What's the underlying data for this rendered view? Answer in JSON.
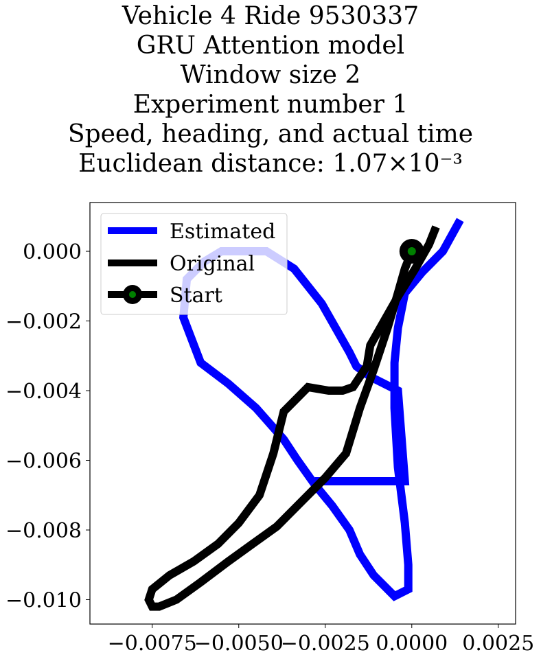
{
  "chart_data": {
    "type": "line",
    "title_lines": [
      "Vehicle 4 Ride 9530337",
      "GRU Attention model",
      "Window size 2",
      "Experiment number 1",
      "Speed, heading, and actual time",
      "Euclidean distance: 1.07×10⁻³"
    ],
    "xlabel": "",
    "ylabel": "",
    "xlim": [
      -0.0093,
      0.003
    ],
    "ylim": [
      -0.0107,
      0.0014
    ],
    "x_ticks": [
      -0.0075,
      -0.005,
      -0.0025,
      0.0,
      0.0025
    ],
    "x_tick_labels": [
      "−0.0075",
      "−0.0050",
      "−0.0025",
      "0.0000",
      "0.0025"
    ],
    "y_ticks": [
      0.0,
      -0.002,
      -0.004,
      -0.006,
      -0.008,
      -0.01
    ],
    "y_tick_labels": [
      "0.000",
      "−0.002",
      "−0.004",
      "−0.006",
      "−0.008",
      "−0.010"
    ],
    "grid": false,
    "legend_position": "upper-left",
    "series": [
      {
        "name": "Estimated",
        "color": "#0000ff",
        "x": [
          0.0014,
          0.0009,
          0.0003,
          -0.0002,
          -0.0004,
          -0.0005,
          -0.0005,
          -0.0004,
          -0.0002,
          -0.0001,
          -0.0001,
          -0.0005,
          -0.0011,
          -0.0015,
          -0.0018,
          -0.0023,
          -0.0028,
          -0.0033,
          -0.0037,
          -0.0045,
          -0.0053,
          -0.0061,
          -0.0066,
          -0.0065,
          -0.006,
          -0.0055,
          -0.005,
          -0.0042,
          -0.0034,
          -0.0026,
          -0.0018,
          -0.0016,
          -0.0012,
          -0.0008,
          -0.0004,
          -0.0002,
          -0.0003,
          -0.0006,
          -0.0013,
          -0.002,
          -0.0025,
          -0.0028
        ],
        "y": [
          0.0009,
          0.0,
          -0.0006,
          -0.0012,
          -0.0022,
          -0.0032,
          -0.0045,
          -0.0062,
          -0.0078,
          -0.009,
          -0.0097,
          -0.0099,
          -0.0093,
          -0.0087,
          -0.008,
          -0.0073,
          -0.0067,
          -0.006,
          -0.0054,
          -0.0045,
          -0.0038,
          -0.0032,
          -0.0019,
          -0.0008,
          -0.0003,
          0.0,
          0.0,
          0.0,
          -0.0005,
          -0.0015,
          -0.0029,
          -0.0033,
          -0.0036,
          -0.0038,
          -0.004,
          -0.0066,
          -0.0066,
          -0.0066,
          -0.0066,
          -0.0066,
          -0.0066,
          -0.0066
        ]
      },
      {
        "name": "Original",
        "color": "#000000",
        "x": [
          0.0007,
          0.0005,
          0.0001,
          -0.0004,
          -0.0008,
          -0.0012,
          -0.0013,
          -0.0017,
          -0.002,
          -0.0024,
          -0.003,
          -0.0037,
          -0.004,
          -0.0044,
          -0.005,
          -0.0056,
          -0.0063,
          -0.007,
          -0.0075,
          -0.0076,
          -0.0075,
          -0.0073,
          -0.0068,
          -0.0061,
          -0.0053,
          -0.0046,
          -0.0039,
          -0.0032,
          -0.0025,
          -0.0019,
          -0.0015,
          -0.0011,
          -0.0007,
          -0.0004,
          -0.0002,
          0.0
        ],
        "y": [
          0.0007,
          0.0002,
          -0.0005,
          -0.0013,
          -0.002,
          -0.0027,
          -0.0033,
          -0.0039,
          -0.004,
          -0.004,
          -0.0039,
          -0.0046,
          -0.0058,
          -0.007,
          -0.0078,
          -0.0084,
          -0.0089,
          -0.0093,
          -0.0097,
          -0.01,
          -0.0102,
          -0.0102,
          -0.01,
          -0.0095,
          -0.0089,
          -0.0084,
          -0.0079,
          -0.0072,
          -0.0065,
          -0.0058,
          -0.0045,
          -0.0034,
          -0.0022,
          -0.0012,
          -0.0005,
          0.0
        ]
      },
      {
        "name": "Start",
        "color": "#000000",
        "marker_face": "#008000",
        "x": [
          0.0
        ],
        "y": [
          0.0
        ]
      }
    ]
  }
}
